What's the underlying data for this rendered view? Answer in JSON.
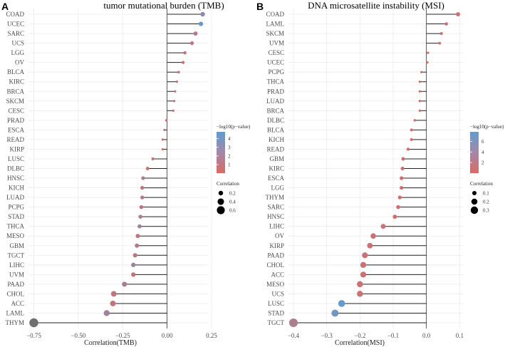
{
  "panels": [
    {
      "letter": "A",
      "title": "tumor mutational burden (TMB)",
      "chart_data": {
        "type": "lollipop",
        "title": "tumor mutational burden (TMB)",
        "xlabel": "Correlation(TMB)",
        "ylabel": "",
        "xlim": [
          -0.78,
          0.23
        ],
        "xticks": [
          -0.75,
          -0.5,
          -0.25,
          0.0,
          0.25
        ],
        "xtick_labels": [
          "−0.75",
          "−0.50",
          "−0.25",
          "0.00",
          "0.25"
        ],
        "categories": [
          "COAD",
          "UCEC",
          "SARC",
          "UCS",
          "LGG",
          "OV",
          "BLCA",
          "KIRC",
          "BRCA",
          "SKCM",
          "CESC",
          "PRAD",
          "ESCA",
          "READ",
          "KIRP",
          "LUSC",
          "DLBC",
          "HNSC",
          "KICH",
          "LUAD",
          "PCPG",
          "STAD",
          "THCA",
          "MESO",
          "GBM",
          "TGCT",
          "LIHC",
          "UVM",
          "PAAD",
          "CHOL",
          "ACC",
          "LAML",
          "THYM"
        ],
        "values": [
          0.2,
          0.19,
          0.16,
          0.14,
          0.1,
          0.09,
          0.065,
          0.055,
          0.045,
          0.04,
          0.035,
          -0.005,
          -0.015,
          -0.025,
          -0.025,
          -0.08,
          -0.11,
          -0.135,
          -0.14,
          -0.14,
          -0.145,
          -0.15,
          -0.155,
          -0.165,
          -0.17,
          -0.18,
          -0.19,
          -0.19,
          -0.24,
          -0.3,
          -0.305,
          -0.34,
          -0.75
        ],
        "neg_log10_p": [
          3.2,
          4.5,
          1.4,
          1.0,
          1.0,
          1.0,
          0.8,
          0.8,
          0.8,
          0.8,
          0.7,
          0.3,
          0.3,
          0.3,
          0.3,
          0.5,
          0.6,
          2.0,
          1.2,
          1.4,
          1.0,
          1.6,
          2.4,
          1.0,
          1.4,
          1.2,
          2.6,
          1.0,
          2.0,
          1.0,
          1.0,
          2.4,
          3.0
        ],
        "colorbar": {
          "title": "−log10(p−value)",
          "range": [
            0,
            4.8
          ],
          "ticks": [
            1,
            2,
            3,
            4
          ],
          "tick_labels": [
            "1",
            "2",
            "3",
            "4"
          ],
          "low_color": "#d96b66",
          "high_color": "#5f9dd0"
        },
        "size_legend": {
          "title": "Correlation",
          "values": [
            0.2,
            0.4,
            0.6
          ],
          "labels": [
            "0.2",
            "0.4",
            "0.6"
          ]
        }
      }
    },
    {
      "letter": "B",
      "title": "DNA microsatellite instability (MSI)",
      "chart_data": {
        "type": "lollipop",
        "title": "DNA microsatellite instability (MSI)",
        "xlabel": "Correlation(MSI)",
        "ylabel": "",
        "xlim": [
          -0.415,
          0.11
        ],
        "xticks": [
          -0.4,
          -0.3,
          -0.2,
          -0.1,
          0.0,
          0.1
        ],
        "xtick_labels": [
          "−0.4",
          "−0.3",
          "−0.2",
          "−0.1",
          "0.0",
          "0.1"
        ],
        "categories": [
          "COAD",
          "LAML",
          "SKCM",
          "UVM",
          "CESC",
          "UCEC",
          "PCPG",
          "THCA",
          "PRAD",
          "LUAD",
          "BRCA",
          "DLBC",
          "BLCA",
          "KICH",
          "READ",
          "GBM",
          "KIRC",
          "ESCA",
          "LGG",
          "THYM",
          "SARC",
          "HNSC",
          "LIHC",
          "OV",
          "KIRP",
          "PAAD",
          "CHOL",
          "ACC",
          "MESO",
          "UCS",
          "LUSC",
          "STAD",
          "TGCT"
        ],
        "values": [
          0.095,
          0.06,
          0.045,
          0.04,
          0.005,
          0.003,
          -0.015,
          -0.02,
          -0.02,
          -0.02,
          -0.02,
          -0.035,
          -0.045,
          -0.045,
          -0.055,
          -0.07,
          -0.072,
          -0.075,
          -0.075,
          -0.08,
          -0.085,
          -0.095,
          -0.13,
          -0.16,
          -0.17,
          -0.185,
          -0.19,
          -0.19,
          -0.2,
          -0.2,
          -0.255,
          -0.275,
          -0.4
        ],
        "neg_log10_p": [
          1.0,
          1.0,
          1.0,
          1.0,
          0.3,
          0.3,
          0.3,
          0.3,
          0.3,
          0.3,
          0.3,
          0.3,
          0.3,
          0.3,
          0.3,
          0.5,
          0.5,
          0.5,
          0.5,
          0.5,
          0.5,
          0.5,
          1.0,
          1.0,
          1.0,
          1.0,
          1.0,
          1.0,
          1.0,
          1.0,
          7.5,
          6.5,
          3.0
        ],
        "colorbar": {
          "title": "−log10(p−value)",
          "range": [
            0,
            7.8
          ],
          "ticks": [
            2,
            4,
            6
          ],
          "tick_labels": [
            "2",
            "4",
            "6"
          ],
          "low_color": "#d96b66",
          "high_color": "#5f9dd0"
        },
        "size_legend": {
          "title": "Correlation",
          "values": [
            0.1,
            0.2,
            0.3
          ],
          "labels": [
            "0.1",
            "0.2",
            "0.3"
          ]
        }
      }
    }
  ]
}
